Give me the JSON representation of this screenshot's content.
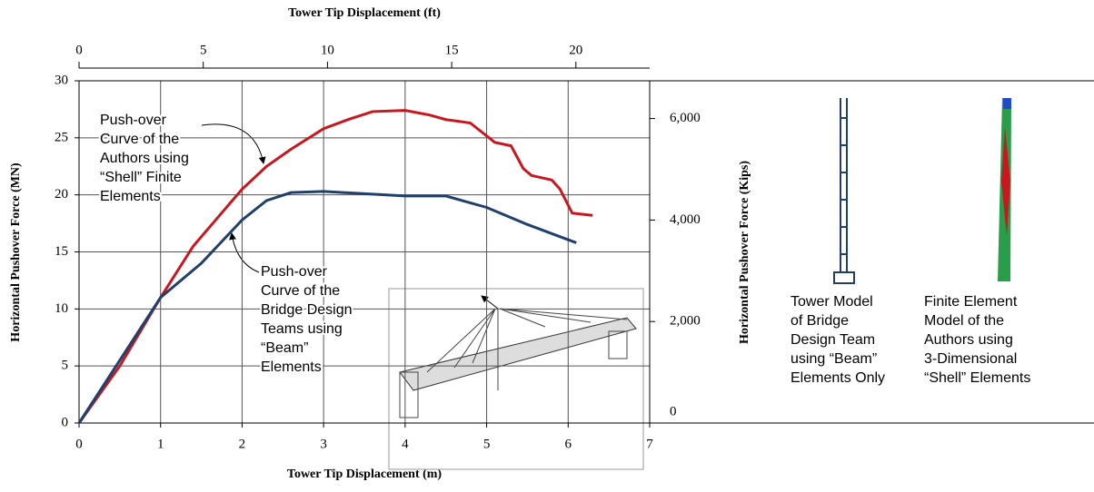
{
  "chart_data": {
    "type": "line",
    "x_title": "Tower Tip Displacement (m)",
    "x2_title": "Tower Tip Displacement (ft)",
    "y_title": "Horizontal Pushover Force  (MN)",
    "y2_title": "Horizontal Pushover Force (Kips)",
    "xlim": [
      0,
      7
    ],
    "xticks": [
      0,
      1,
      2,
      3,
      4,
      5,
      6,
      7
    ],
    "x2lim": [
      0,
      22.97
    ],
    "x2ticks": [
      0,
      5,
      10,
      15,
      20
    ],
    "ylim": [
      0,
      30
    ],
    "yticks": [
      0,
      5,
      10,
      15,
      20,
      25,
      30
    ],
    "y2lim": [
      0,
      6744
    ],
    "y2ticks": [
      0,
      {
        "value": 2000,
        "label": "2,000"
      },
      {
        "value": 4000,
        "label": "4,000"
      },
      {
        "value": 6000,
        "label": "6,000"
      }
    ],
    "grid": true,
    "series": [
      {
        "color": "#c8171e",
        "x": [
          0,
          0.5,
          1,
          1.4,
          1.7,
          2,
          2.3,
          2.6,
          3,
          3.3,
          3.6,
          4,
          4.3,
          4.5,
          4.8,
          5.1,
          5.3,
          5.45,
          5.55,
          5.8,
          5.9,
          6.05,
          6.3
        ],
        "values": [
          0,
          5,
          11,
          15.5,
          18,
          20.5,
          22.5,
          24,
          25.8,
          26.6,
          27.3,
          27.4,
          27,
          26.6,
          26.3,
          24.6,
          24.3,
          22.3,
          21.7,
          21.3,
          20.5,
          18.4,
          18.2
        ]
      },
      {
        "color": "#203f6a",
        "x": [
          0,
          1,
          1.5,
          2,
          2.3,
          2.6,
          3,
          3.5,
          4,
          4.5,
          5,
          5.5,
          6.1
        ],
        "values": [
          0,
          11,
          14,
          17.8,
          19.5,
          20.2,
          20.3,
          20.1,
          19.9,
          19.9,
          18.9,
          17.4,
          15.8
        ]
      }
    ],
    "annotations": [
      {
        "lines": [
          "Push-over",
          "Curve of the",
          "Authors using",
          "“Shell” Finite",
          "Elements"
        ]
      },
      {
        "lines": [
          "Push-over",
          "Curve of the",
          "Bridge Design",
          "Teams using",
          "“Beam”",
          "Elements"
        ]
      },
      {
        "lines": [
          "Tower Model",
          "of Bridge",
          "Design Team",
          "using “Beam”",
          "Elements Only"
        ]
      },
      {
        "lines": [
          "Finite Element",
          "Model of the",
          "Authors using",
          "3-Dimensional",
          "“Shell” Elements"
        ]
      }
    ]
  }
}
